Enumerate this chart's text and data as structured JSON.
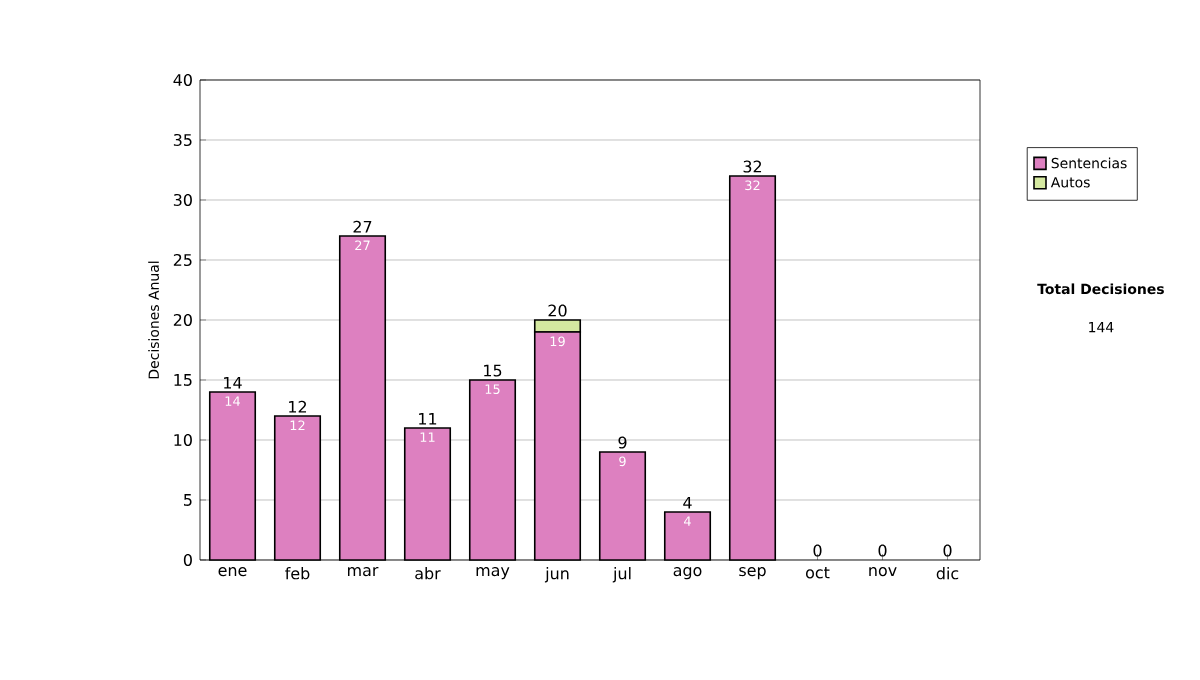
{
  "chart_data": {
    "type": "bar",
    "stacked": true,
    "ylabel": "Decisiones Anual",
    "categories": [
      "ene",
      "feb",
      "mar",
      "abr",
      "may",
      "jun",
      "jul",
      "ago",
      "sep",
      "oct",
      "nov",
      "dic"
    ],
    "series": [
      {
        "name": "Sentencias",
        "color": "#dd80c0",
        "values": [
          14,
          12,
          27,
          11,
          15,
          19,
          9,
          4,
          32,
          0,
          0,
          0
        ],
        "value_labels": [
          "14",
          "12",
          "27",
          "11",
          "15",
          "19",
          "9",
          "4",
          "32",
          null,
          null,
          null
        ]
      },
      {
        "name": "Autos",
        "color": "#d4e8a0",
        "values": [
          0,
          0,
          0,
          0,
          0,
          1,
          0,
          0,
          0,
          0,
          0,
          0
        ]
      }
    ],
    "totals": [
      "14",
      "12",
      "27",
      "11",
      "15",
      "20",
      "9",
      "4",
      "32",
      "0",
      "0",
      "0"
    ],
    "ylim": [
      0,
      40
    ],
    "yticks": [
      0,
      5,
      10,
      15,
      20,
      25,
      30,
      35,
      40
    ],
    "grid": "y",
    "legend": "right",
    "annotations": [
      "Total Decisiones",
      "144"
    ]
  }
}
